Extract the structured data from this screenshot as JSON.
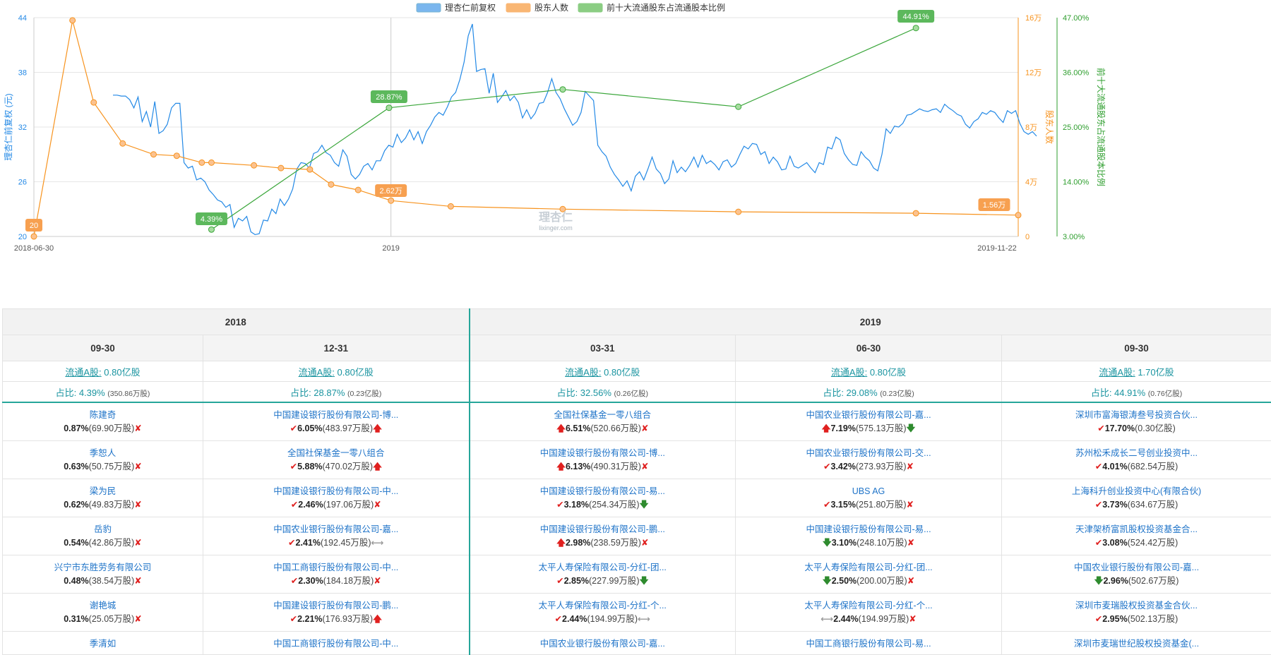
{
  "chart_data": {
    "type": "line",
    "legend": [
      {
        "name": "理杏仁前复权",
        "color": "#7ab6ee"
      },
      {
        "name": "股东人数",
        "color": "#f9b673"
      },
      {
        "name": "前十大流通股东占流通股本比例",
        "color": "#8bcd83"
      }
    ],
    "x_labels": [
      "2018-06-30",
      "2019",
      "2019-11-22"
    ],
    "y_left": {
      "label": "理杏仁前复权 (元)",
      "ticks": [
        "20",
        "26",
        "32",
        "38",
        "44"
      ],
      "min": 20,
      "max": 44,
      "color": "#2389e6"
    },
    "y_right1": {
      "label": "股东人数",
      "ticks": [
        "0",
        "4万",
        "8万",
        "12万",
        "16万"
      ],
      "color": "#f7931e"
    },
    "y_right2": {
      "label": "前十大流通股东占流通股本比例",
      "ticks": [
        "3.00%",
        "14.00%",
        "25.00%",
        "36.00%",
        "47.00%"
      ],
      "color": "#2e9e2e"
    },
    "price": [
      35.5,
      35.5,
      35.4,
      35.4,
      35.0,
      34.1,
      35.3,
      32.6,
      33.7,
      32.0,
      34.8,
      31.3,
      31.6,
      32.3,
      34.1,
      34.6,
      34.6,
      28.1,
      27.5,
      27.7,
      26.2,
      26.4,
      26.0,
      25.1,
      24.6,
      24.0,
      23.8,
      23.2,
      23.5,
      21.0,
      22.0,
      21.7,
      22.2,
      20.5,
      20.2,
      20.3,
      21.8,
      21.7,
      23.0,
      22.5,
      24.1,
      23.4,
      24.1,
      25.2,
      27.4,
      28.1,
      28.0,
      27.5,
      29.1,
      29.3,
      30.0,
      29.2,
      28.9,
      28.1,
      27.7,
      29.5,
      28.8,
      26.8,
      26.3,
      26.8,
      27.7,
      28.0,
      27.3,
      28.3,
      28.3,
      29.4,
      30.0,
      29.8,
      31.2,
      30.3,
      30.8,
      31.7,
      30.6,
      31.5,
      30.2,
      31.5,
      32.2,
      33.1,
      33.6,
      33.3,
      34.2,
      35.3,
      35.8,
      37.2,
      39.1,
      42.0,
      43.3,
      38.1,
      38.3,
      38.4,
      35.7,
      37.9,
      34.7,
      35.3,
      36.0,
      34.9,
      35.4,
      34.7,
      33.0,
      33.9,
      32.9,
      33.5,
      34.6,
      34.7,
      35.8,
      37.3,
      35.8,
      35.1,
      34.0,
      33.1,
      32.2,
      32.6,
      33.6,
      35.9,
      35.4,
      34.9,
      30.0,
      29.3,
      28.8,
      27.6,
      26.8,
      26.2,
      25.5,
      26.1,
      25.0,
      26.6,
      27.1,
      26.2,
      27.4,
      28.7,
      27.4,
      26.9,
      25.8,
      26.3,
      28.3,
      27.0,
      27.6,
      27.1,
      27.8,
      28.7,
      27.6,
      28.9,
      28.0,
      28.3,
      27.9,
      27.3,
      28.2,
      28.4,
      27.6,
      28.0,
      29.0,
      29.9,
      29.6,
      30.2,
      30.1,
      29.0,
      29.3,
      28.0,
      28.7,
      28.2,
      27.3,
      27.4,
      28.8,
      27.7,
      27.5,
      27.8,
      28.1,
      27.5,
      27.0,
      28.1,
      27.9,
      29.8,
      29.6,
      30.9,
      30.6,
      29.1,
      28.4,
      27.9,
      27.8,
      29.3,
      28.7,
      28.3,
      27.5,
      27.2,
      29.0,
      31.8,
      31.3,
      32.1,
      32.0,
      32.4,
      33.3,
      33.4,
      33.7,
      34.0,
      33.8,
      33.7,
      33.9,
      34.0,
      33.6,
      34.5,
      34.1,
      33.8,
      33.4,
      33.2,
      32.3,
      31.9,
      32.6,
      32.9,
      33.6,
      33.4,
      33.8,
      33.6,
      33.0,
      32.5,
      33.8,
      33.5,
      33.8,
      32.4,
      31.5,
      31.2,
      31.5,
      31.0
    ],
    "holders": [
      {
        "date": "2018-06-30",
        "value": 20
      },
      {
        "date": "2018-07-20",
        "value": 158000
      },
      {
        "date": "2018-07-31",
        "value": 98000
      },
      {
        "date": "2018-08-15",
        "value": 68000
      },
      {
        "date": "2018-08-31",
        "value": 60000
      },
      {
        "date": "2018-09-12",
        "value": 59000
      },
      {
        "date": "2018-09-25",
        "value": 54000
      },
      {
        "date": "2018-09-30",
        "value": 54000
      },
      {
        "date": "2018-10-22",
        "value": 52000
      },
      {
        "date": "2018-11-05",
        "value": 50000
      },
      {
        "date": "2018-11-20",
        "value": 49000
      },
      {
        "date": "2018-12-01",
        "value": 38000
      },
      {
        "date": "2018-12-15",
        "value": 34000
      },
      {
        "date": "2019-01-01",
        "value": 26200
      },
      {
        "date": "2019-02-01",
        "value": 22000
      },
      {
        "date": "2019-03-31",
        "value": 20000
      },
      {
        "date": "2019-06-30",
        "value": 18000
      },
      {
        "date": "2019-09-30",
        "value": 17000
      },
      {
        "date": "2019-11-22",
        "value": 15600
      }
    ],
    "top10_ratio": [
      {
        "date": "2018-09-30",
        "value": 4.39
      },
      {
        "date": "2018-12-31",
        "value": 28.87
      },
      {
        "date": "2019-03-31",
        "value": 32.56
      },
      {
        "date": "2019-06-30",
        "value": 29.08
      },
      {
        "date": "2019-09-30",
        "value": 44.91
      }
    ],
    "annotations": [
      "20",
      "2.62万",
      "1.56万",
      "4.39%",
      "28.87%",
      "44.91%"
    ]
  },
  "watermark": {
    "brand": "理杏仁",
    "domain": "lixinger.com"
  },
  "table": {
    "years": [
      "2018",
      "2019"
    ],
    "dates": [
      "09-30",
      "12-31",
      "03-31",
      "06-30",
      "09-30"
    ],
    "float_label": "流通A股:",
    "ratio_label": "占比:",
    "float_shares": [
      "0.80亿股",
      "0.80亿股",
      "0.80亿股",
      "0.80亿股",
      "1.70亿股"
    ],
    "ratios": [
      "4.39%",
      "28.87%",
      "32.56%",
      "29.08%",
      "44.91%"
    ],
    "ratio_details": [
      "(350.86万股)",
      "(0.23亿股)",
      "(0.26亿股)",
      "(0.23亿股)",
      "(0.76亿股)"
    ],
    "rows": [
      [
        {
          "name": "陈建奇",
          "pct": "0.87%",
          "qty": "(69.90万股)",
          "pre": "",
          "post": "x"
        },
        {
          "name": "中国建设银行股份有限公司-博...",
          "pct": "6.05%",
          "qty": "(483.97万股)",
          "pre": "new",
          "post": "up"
        },
        {
          "name": "全国社保基金一零八组合",
          "pct": "6.51%",
          "qty": "(520.66万股)",
          "pre": "up",
          "post": "x"
        },
        {
          "name": "中国农业银行股份有限公司-嘉...",
          "pct": "7.19%",
          "qty": "(575.13万股)",
          "pre": "up",
          "post": "down"
        },
        {
          "name": "深圳市富海银涛叁号投资合伙...",
          "pct": "17.70%",
          "qty": "(0.30亿股)",
          "pre": "new",
          "post": ""
        }
      ],
      [
        {
          "name": "季恕人",
          "pct": "0.63%",
          "qty": "(50.75万股)",
          "pre": "",
          "post": "x"
        },
        {
          "name": "全国社保基金一零八组合",
          "pct": "5.88%",
          "qty": "(470.02万股)",
          "pre": "new",
          "post": "up"
        },
        {
          "name": "中国建设银行股份有限公司-博...",
          "pct": "6.13%",
          "qty": "(490.31万股)",
          "pre": "up",
          "post": "x"
        },
        {
          "name": "中国农业银行股份有限公司-交...",
          "pct": "3.42%",
          "qty": "(273.93万股)",
          "pre": "new",
          "post": "x"
        },
        {
          "name": "苏州松禾成长二号创业投资中...",
          "pct": "4.01%",
          "qty": "(682.54万股)",
          "pre": "new",
          "post": ""
        }
      ],
      [
        {
          "name": "梁为民",
          "pct": "0.62%",
          "qty": "(49.83万股)",
          "pre": "",
          "post": "x"
        },
        {
          "name": "中国建设银行股份有限公司-中...",
          "pct": "2.46%",
          "qty": "(197.06万股)",
          "pre": "new",
          "post": "x"
        },
        {
          "name": "中国建设银行股份有限公司-易...",
          "pct": "3.18%",
          "qty": "(254.34万股)",
          "pre": "new",
          "post": "down"
        },
        {
          "name": "UBS AG",
          "pct": "3.15%",
          "qty": "(251.80万股)",
          "pre": "new",
          "post": "x"
        },
        {
          "name": "上海科升创业投资中心(有限合伙)",
          "pct": "3.73%",
          "qty": "(634.67万股)",
          "pre": "new",
          "post": ""
        }
      ],
      [
        {
          "name": "岳豹",
          "pct": "0.54%",
          "qty": "(42.86万股)",
          "pre": "",
          "post": "x"
        },
        {
          "name": "中国农业银行股份有限公司-嘉...",
          "pct": "2.41%",
          "qty": "(192.45万股)",
          "pre": "new",
          "post": "flat"
        },
        {
          "name": "中国建设银行股份有限公司-鹏...",
          "pct": "2.98%",
          "qty": "(238.59万股)",
          "pre": "up",
          "post": "x"
        },
        {
          "name": "中国建设银行股份有限公司-易...",
          "pct": "3.10%",
          "qty": "(248.10万股)",
          "pre": "down",
          "post": "x"
        },
        {
          "name": "天津架桥富凯股权投资基金合...",
          "pct": "3.08%",
          "qty": "(524.42万股)",
          "pre": "new",
          "post": ""
        }
      ],
      [
        {
          "name": "兴宁市东胜劳务有限公司",
          "pct": "0.48%",
          "qty": "(38.54万股)",
          "pre": "",
          "post": "x"
        },
        {
          "name": "中国工商银行股份有限公司-中...",
          "pct": "2.30%",
          "qty": "(184.18万股)",
          "pre": "new",
          "post": "x"
        },
        {
          "name": "太平人寿保险有限公司-分红-团...",
          "pct": "2.85%",
          "qty": "(227.99万股)",
          "pre": "new",
          "post": "down"
        },
        {
          "name": "太平人寿保险有限公司-分红-团...",
          "pct": "2.50%",
          "qty": "(200.00万股)",
          "pre": "down",
          "post": "x"
        },
        {
          "name": "中国农业银行股份有限公司-嘉...",
          "pct": "2.96%",
          "qty": "(502.67万股)",
          "pre": "down",
          "post": ""
        }
      ],
      [
        {
          "name": "谢艳城",
          "pct": "0.31%",
          "qty": "(25.05万股)",
          "pre": "",
          "post": "x"
        },
        {
          "name": "中国建设银行股份有限公司-鹏...",
          "pct": "2.21%",
          "qty": "(176.93万股)",
          "pre": "new",
          "post": "up"
        },
        {
          "name": "太平人寿保险有限公司-分红-个...",
          "pct": "2.44%",
          "qty": "(194.99万股)",
          "pre": "new",
          "post": "flat"
        },
        {
          "name": "太平人寿保险有限公司-分红-个...",
          "pct": "2.44%",
          "qty": "(194.99万股)",
          "pre": "flat",
          "post": "x"
        },
        {
          "name": "深圳市麦瑞股权投资基金合伙...",
          "pct": "2.95%",
          "qty": "(502.13万股)",
          "pre": "new",
          "post": ""
        }
      ]
    ],
    "partial_row": [
      "季清如",
      "中国工商银行股份有限公司-中...",
      "中国农业银行股份有限公司-嘉...",
      "中国工商银行股份有限公司-易...",
      "深圳市麦瑞世纪股权投资基金(..."
    ],
    "icons": {
      "new": "✔",
      "up": "🡅",
      "down": "🡇",
      "flat": "⟷",
      "x": "✘"
    }
  }
}
